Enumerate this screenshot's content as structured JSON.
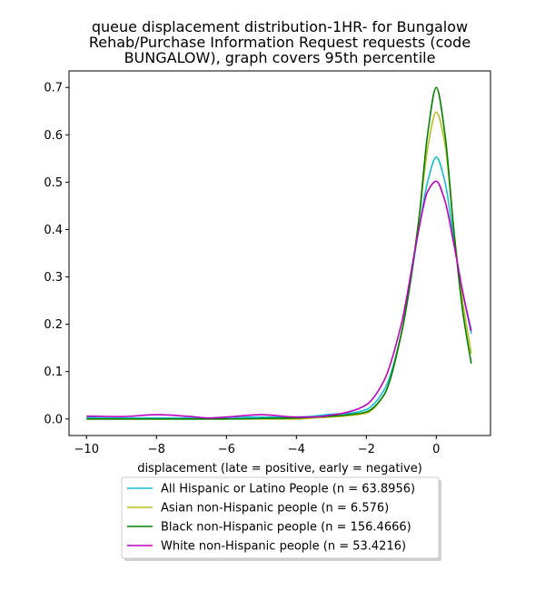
{
  "chart_data": {
    "type": "line",
    "title": [
      "queue displacement distribution-1HR-  for Bungalow",
      "Rehab/Purchase Information Request  requests (code",
      "BUNGALOW), graph covers 95th percentile"
    ],
    "xlabel": "displacement (late = positive, early = negative)",
    "ylabel": "",
    "xlim": [
      -10.5,
      1.55
    ],
    "ylim": [
      -0.035,
      0.735
    ],
    "xticks": [
      -10,
      -8,
      -6,
      -4,
      -2,
      0
    ],
    "xtick_labels": [
      "−10",
      "−8",
      "−6",
      "−4",
      "−2",
      "0"
    ],
    "yticks": [
      0.0,
      0.1,
      0.2,
      0.3,
      0.4,
      0.5,
      0.6,
      0.7
    ],
    "ytick_labels": [
      "0.0",
      "0.1",
      "0.2",
      "0.3",
      "0.4",
      "0.5",
      "0.6",
      "0.7"
    ],
    "grid": false,
    "legend_position": "below plot, centered",
    "series": [
      {
        "name": "All Hispanic or Latino People (n = 63.8956)",
        "color": "#17becf",
        "x": [
          -10,
          -9,
          -8,
          -7,
          -6.5,
          -6,
          -5,
          -4,
          -3.5,
          -3,
          -2.5,
          -2,
          -1.5,
          -1,
          -0.5,
          -0.25,
          0,
          0.25,
          0.5,
          0.75,
          1
        ],
        "y": [
          0.003,
          0.002,
          0.002,
          0.002,
          0.002,
          0.003,
          0.004,
          0.004,
          0.006,
          0.01,
          0.012,
          0.02,
          0.06,
          0.18,
          0.4,
          0.5,
          0.553,
          0.5,
          0.38,
          0.27,
          0.18
        ]
      },
      {
        "name": "Asian non-Hispanic people (n = 6.576)",
        "color": "#bcbd22",
        "x": [
          -10,
          -9,
          -8,
          -7,
          -6,
          -5,
          -4,
          -3.5,
          -3,
          -2.5,
          -2,
          -1.5,
          -1,
          -0.5,
          -0.25,
          0,
          0.25,
          0.5,
          0.75,
          1
        ],
        "y": [
          0.0,
          0.0,
          0.0,
          0.0,
          0.0,
          0.0,
          0.0,
          0.002,
          0.004,
          0.007,
          0.012,
          0.05,
          0.18,
          0.42,
          0.57,
          0.648,
          0.58,
          0.4,
          0.25,
          0.138
        ]
      },
      {
        "name": "Black non-Hispanic people (n = 156.4666)",
        "color": "#008000",
        "x": [
          -10,
          -9,
          -8,
          -7,
          -6,
          -5,
          -4,
          -3.5,
          -3,
          -2.5,
          -2,
          -1.5,
          -1,
          -0.5,
          -0.25,
          0,
          0.25,
          0.5,
          0.75,
          1
        ],
        "y": [
          0.0,
          0.0,
          0.0,
          0.0,
          0.0,
          0.001,
          0.002,
          0.004,
          0.006,
          0.009,
          0.015,
          0.05,
          0.18,
          0.42,
          0.6,
          0.7,
          0.6,
          0.4,
          0.23,
          0.117
        ]
      },
      {
        "name": "White non-Hispanic people (n = 53.4216)",
        "color": "#bf00bf",
        "x": [
          -10,
          -9,
          -8,
          -7,
          -6.5,
          -6,
          -5,
          -4,
          -3.5,
          -3,
          -2.5,
          -2,
          -1.5,
          -1,
          -0.5,
          -0.25,
          0,
          0.25,
          0.5,
          0.75,
          1
        ],
        "y": [
          0.006,
          0.005,
          0.009,
          0.005,
          0.002,
          0.004,
          0.009,
          0.004,
          0.004,
          0.008,
          0.015,
          0.03,
          0.08,
          0.2,
          0.4,
          0.48,
          0.502,
          0.46,
          0.37,
          0.27,
          0.186
        ]
      }
    ]
  }
}
